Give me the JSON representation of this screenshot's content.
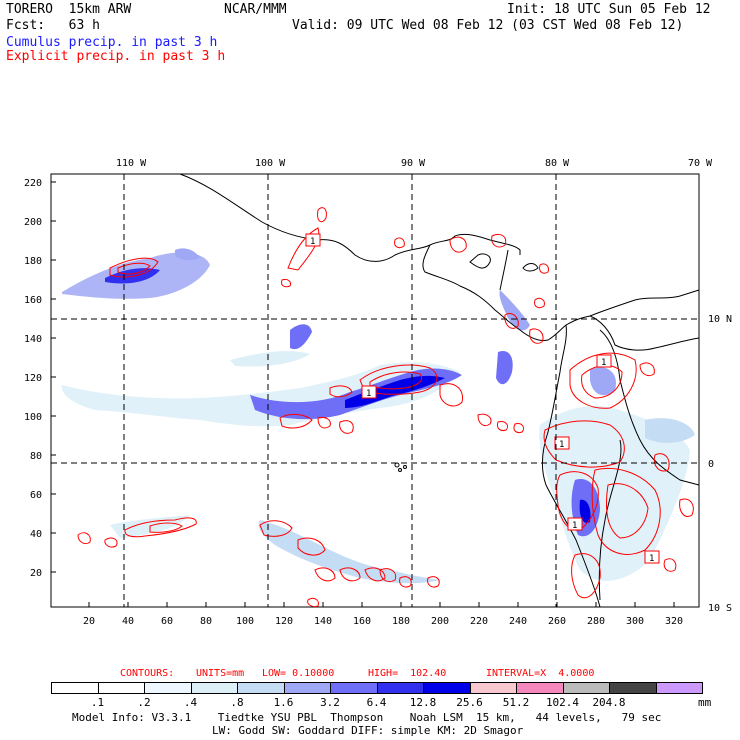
{
  "header": {
    "model_line": "TORERO  15km ARW",
    "center_label": "NCAR/MMM",
    "init": "Init: 18 UTC Sun 05 Feb 12",
    "fcst": "Fcst:   63 h",
    "valid": "Valid: 09 UTC Wed 08 Feb 12 (03 CST Wed 08 Feb 12)",
    "legend_cumulus": "Cumulus precip. in past 3 h",
    "legend_explicit": "Explicit precip. in past 3 h"
  },
  "axes": {
    "top_lon_labels": [
      "110 W",
      "100 W",
      "90 W",
      "80 W",
      "70 W"
    ],
    "right_lat_labels": [
      "10 N",
      "0",
      "10 S"
    ],
    "left_y_ticks": [
      "220",
      "200",
      "180",
      "160",
      "140",
      "120",
      "100",
      "80",
      "60",
      "40",
      "20"
    ],
    "bottom_x_ticks": [
      "20",
      "40",
      "60",
      "80",
      "100",
      "120",
      "140",
      "160",
      "180",
      "200",
      "220",
      "240",
      "260",
      "280",
      "300",
      "320"
    ]
  },
  "contours_line": {
    "contours": "CONTOURS:",
    "units": "UNITS=mm",
    "low": "LOW= 0.10000",
    "high": "HIGH=  102.40",
    "interval": "INTERVAL=X  4.0000"
  },
  "colorbar": {
    "units": "mm",
    "labels": [
      ".1",
      ".2",
      ".4",
      ".8",
      "1.6",
      "3.2",
      "6.4",
      "12.8",
      "25.6",
      "51.2",
      "102.4",
      "204.8"
    ],
    "colors": [
      "#ffffff",
      "#ffffff",
      "#eef6ff",
      "#ddf0f8",
      "#c4dcf4",
      "#9fa8f4",
      "#6e6ef6",
      "#3030ee",
      "#0000e8",
      "#f8c8d0",
      "#f488bc",
      "#bbbbbb",
      "#444444",
      "#cc99ff"
    ]
  },
  "footer": {
    "line1": "Model Info: V3.3.1    Tiedtke YSU PBL  Thompson    Noah LSM  15 km,   44 levels,   79 sec",
    "line2": "LW: Godd SW: Goddard DIFF: simple KM: 2D Smagor"
  },
  "map": {
    "label_boxes": [
      "1",
      "1",
      "1",
      "1",
      "1",
      "1"
    ]
  }
}
